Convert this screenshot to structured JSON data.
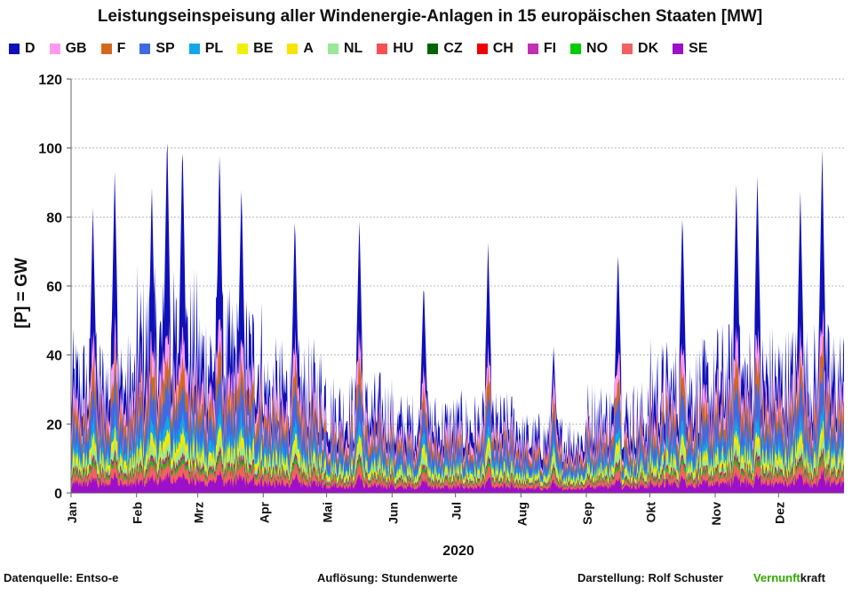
{
  "chart_data": {
    "type": "area",
    "title": "Leistungseinspeisung aller Windenergie-Anlagen in 15 europäischen Staaten  [MW]",
    "ylabel": "[P]  = GW",
    "xlabel": "2020",
    "ylim": [
      0,
      120
    ],
    "yticks": [
      0,
      20,
      40,
      60,
      80,
      100,
      120
    ],
    "grid": true,
    "legend_position": "top",
    "stacking": "stacked, bottom to top: SE, DK, NO, FI, CH, CZ, HU, NL, A, BE, PL, SP, F, GB, D",
    "months": [
      "Jan",
      "Feb",
      "Mrz",
      "Apr",
      "Mai",
      "Jun",
      "Jul",
      "Aug",
      "Sep",
      "Okt",
      "Nov",
      "Dez"
    ],
    "series": [
      {
        "name": "D",
        "color": "#1010b8"
      },
      {
        "name": "GB",
        "color": "#ff9af0"
      },
      {
        "name": "F",
        "color": "#d2691e"
      },
      {
        "name": "SP",
        "color": "#4169e1"
      },
      {
        "name": "PL",
        "color": "#12a8e8"
      },
      {
        "name": "BE",
        "color": "#f0f000"
      },
      {
        "name": "A",
        "color": "#f8e400"
      },
      {
        "name": "NL",
        "color": "#98e898"
      },
      {
        "name": "HU",
        "color": "#f85050"
      },
      {
        "name": "CZ",
        "color": "#006400"
      },
      {
        "name": "CH",
        "color": "#ee0000"
      },
      {
        "name": "FI",
        "color": "#c030b0"
      },
      {
        "name": "NO",
        "color": "#00cc00"
      },
      {
        "name": "DK",
        "color": "#f46060"
      },
      {
        "name": "SE",
        "color": "#9b10c8"
      }
    ],
    "total_peaks": [
      {
        "x": "Jan",
        "y": 83
      },
      {
        "x": "Jan",
        "y": 94
      },
      {
        "x": "Feb",
        "y": 90
      },
      {
        "x": "Feb",
        "y": 106
      },
      {
        "x": "Feb",
        "y": 103
      },
      {
        "x": "Mrz",
        "y": 100
      },
      {
        "x": "Mrz",
        "y": 90
      },
      {
        "x": "Apr",
        "y": 81
      },
      {
        "x": "Mai",
        "y": 80
      },
      {
        "x": "Jun",
        "y": 62
      },
      {
        "x": "Jul",
        "y": 73
      },
      {
        "x": "Aug",
        "y": 43
      },
      {
        "x": "Sep",
        "y": 71
      },
      {
        "x": "Okt",
        "y": 82
      },
      {
        "x": "Nov",
        "y": 91
      },
      {
        "x": "Nov",
        "y": 93
      },
      {
        "x": "Dez",
        "y": 88
      },
      {
        "x": "Dez",
        "y": 100
      }
    ]
  },
  "footer": {
    "source": "Datenquelle: Entso-e",
    "resolution": "Auflösung: Stundenwerte",
    "author": "Darstellung:  Rolf Schuster",
    "brand_green": "Vernunft",
    "brand_rest": "kraft"
  }
}
